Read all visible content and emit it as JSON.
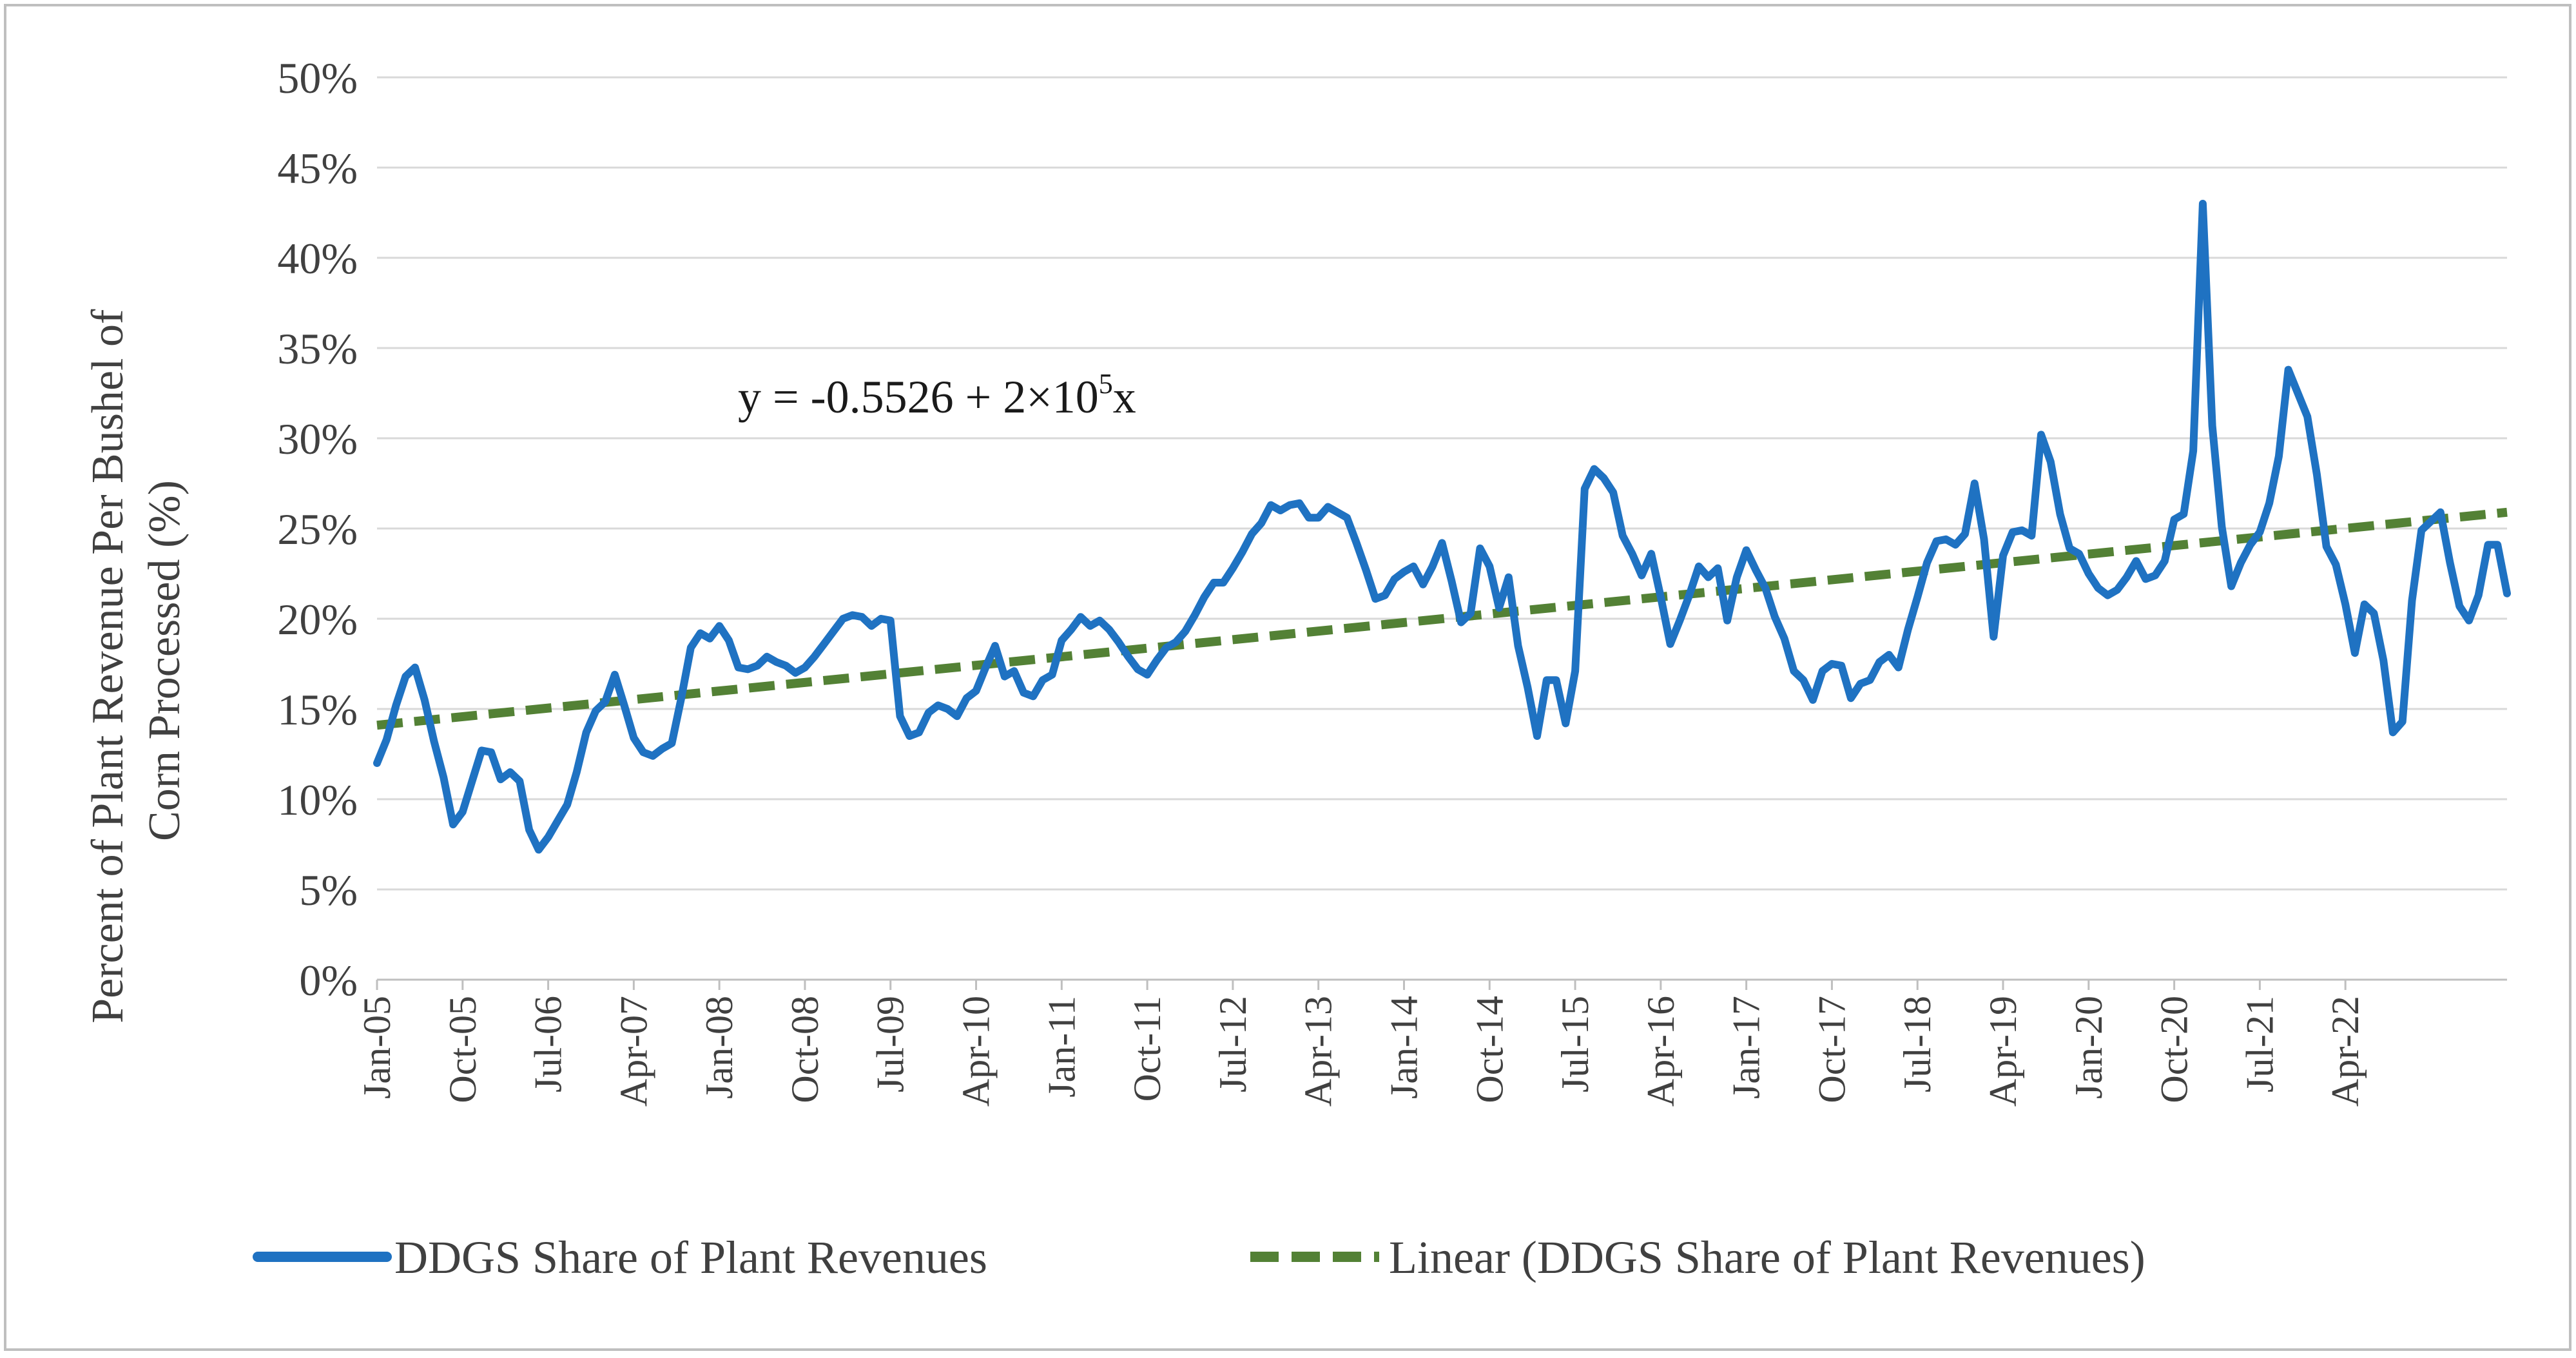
{
  "chart_data": {
    "type": "line",
    "ylabel_line1": "Percent of Plant Revenue Per Bushel of",
    "ylabel_line2": "Corn Processed  (%)",
    "ylim": [
      0,
      50
    ],
    "y_ticks": [
      "0%",
      "5%",
      "10%",
      "15%",
      "20%",
      "25%",
      "30%",
      "35%",
      "40%",
      "45%",
      "50%"
    ],
    "x_ticks": [
      "Jan-05",
      "Oct-05",
      "Jul-06",
      "Apr-07",
      "Jan-08",
      "Oct-08",
      "Jul-09",
      "Apr-10",
      "Jan-11",
      "Oct-11",
      "Jul-12",
      "Apr-13",
      "Jan-14",
      "Oct-14",
      "Jul-15",
      "Apr-16",
      "Jan-17",
      "Oct-17",
      "Jul-18",
      "Apr-19",
      "Jan-20",
      "Oct-20",
      "Jul-21",
      "Apr-22"
    ],
    "x_start": "Jan-05",
    "x_end": "Dec-22",
    "grid": "horizontal",
    "legend_position": "bottom",
    "equation": {
      "prefix": "y = -0.5526 + 2×10",
      "superscript": "5",
      "suffix": "x"
    },
    "series": [
      {
        "name": "DDGS Share of Plant Revenues",
        "color": "#1f72c2",
        "style": "solid",
        "values": [
          12.0,
          13.3,
          15.2,
          16.8,
          17.3,
          15.5,
          13.2,
          11.2,
          8.6,
          9.3,
          11.0,
          12.7,
          12.6,
          11.1,
          11.5,
          11.0,
          8.3,
          7.2,
          7.9,
          8.8,
          9.7,
          11.5,
          13.7,
          14.9,
          15.4,
          16.9,
          15.2,
          13.4,
          12.6,
          12.4,
          12.8,
          13.1,
          15.6,
          18.4,
          19.2,
          18.9,
          19.6,
          18.8,
          17.3,
          17.2,
          17.4,
          17.9,
          17.6,
          17.4,
          17.0,
          17.3,
          17.9,
          18.6,
          19.3,
          20.0,
          20.2,
          20.1,
          19.6,
          20.0,
          19.9,
          14.6,
          13.5,
          13.7,
          14.8,
          15.2,
          15.0,
          14.6,
          15.6,
          16.0,
          17.3,
          18.5,
          16.8,
          17.1,
          15.9,
          15.7,
          16.6,
          16.9,
          18.8,
          19.4,
          20.1,
          19.6,
          19.9,
          19.4,
          18.7,
          17.9,
          17.2,
          16.9,
          17.7,
          18.4,
          18.7,
          19.3,
          20.2,
          21.2,
          22.0,
          22.0,
          22.8,
          23.7,
          24.7,
          25.3,
          26.3,
          26.0,
          26.3,
          26.4,
          25.6,
          25.6,
          26.2,
          25.9,
          25.6,
          24.2,
          22.7,
          21.1,
          21.3,
          22.2,
          22.6,
          22.9,
          21.9,
          22.9,
          24.2,
          22.1,
          19.8,
          20.3,
          23.9,
          22.9,
          20.6,
          22.3,
          18.5,
          16.2,
          13.5,
          16.6,
          16.6,
          14.2,
          17.1,
          27.2,
          28.3,
          27.8,
          27.0,
          24.6,
          23.6,
          22.4,
          23.6,
          21.2,
          18.6,
          19.9,
          21.3,
          22.9,
          22.3,
          22.8,
          19.9,
          22.3,
          23.8,
          22.7,
          21.7,
          20.1,
          18.9,
          17.1,
          16.6,
          15.5,
          17.1,
          17.5,
          17.4,
          15.6,
          16.4,
          16.6,
          17.6,
          18.0,
          17.3,
          19.4,
          21.2,
          23.1,
          24.3,
          24.4,
          24.1,
          24.7,
          27.5,
          24.4,
          19.0,
          23.5,
          24.8,
          24.9,
          24.6,
          30.2,
          28.7,
          25.8,
          23.9,
          23.6,
          22.5,
          21.7,
          21.3,
          21.6,
          22.3,
          23.2,
          22.2,
          22.4,
          23.2,
          25.5,
          25.8,
          29.3,
          43.0,
          30.7,
          25.1,
          21.8,
          23.1,
          24.1,
          24.8,
          26.4,
          29.0,
          33.8,
          32.5,
          31.2,
          28.0,
          24.0,
          23.0,
          20.8,
          18.1,
          20.8,
          20.3,
          17.7,
          13.7,
          14.3,
          21.0,
          24.9,
          25.4,
          25.9,
          23.1,
          20.7,
          19.9,
          21.3,
          24.1,
          24.1,
          21.4
        ]
      },
      {
        "name": "Linear (DDGS Share of Plant Revenues)",
        "color": "#538135",
        "style": "dashed",
        "start_value": 14.1,
        "end_value": 25.9
      }
    ]
  }
}
